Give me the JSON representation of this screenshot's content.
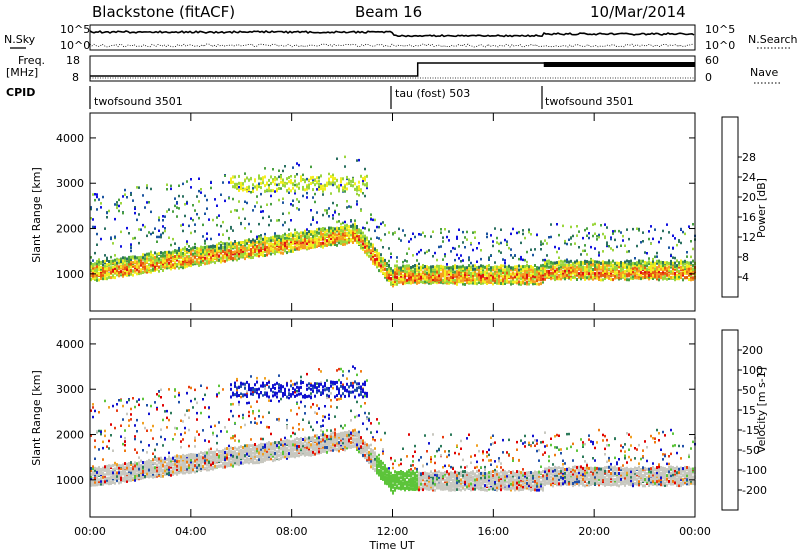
{
  "header": {
    "title": "Blackstone (fitACF)",
    "beam": "Beam 16",
    "date": "10/Mar/2014"
  },
  "side_labels": {
    "nsky": "N.Sky",
    "freq": "Freq.",
    "freq_unit": "[MHz]",
    "cpid": "CPID",
    "nsearch": "N.Search",
    "nave": "Nave"
  },
  "noise_axis": {
    "top": "10^5",
    "bottom": "10^0",
    "right_top": "10^5",
    "right_bottom": "10^0"
  },
  "freq_axis": {
    "left_top": "18",
    "left_bottom": "8",
    "right_top": "60",
    "right_bottom": "0"
  },
  "cpid_segments": [
    {
      "label": "twofsound 3501",
      "start_hour": 0
    },
    {
      "label": "tau (fost) 503",
      "start_hour": 12
    },
    {
      "label": "twofsound 3501",
      "start_hour": 18
    }
  ],
  "chart_data": [
    {
      "type": "heatmap",
      "title": "Power",
      "ylabel": "Slant Range [km]",
      "xlabel": "Time UT",
      "xlim_hours": [
        0,
        24
      ],
      "ylim_km": [
        180,
        4550
      ],
      "y_ticks": [
        1000,
        2000,
        3000,
        4000
      ],
      "x_tick_labels": [
        "00:00",
        "04:00",
        "08:00",
        "12:00",
        "16:00",
        "20:00",
        "00:00"
      ],
      "colorbar": {
        "label": "Power [dB]",
        "ticks": [
          "4",
          "8",
          "12",
          "16",
          "20",
          "24",
          "28"
        ],
        "colors": [
          "#1010e0",
          "#1b55a0",
          "#2a7060",
          "#48a040",
          "#9bd63c",
          "#f2ee1f",
          "#f5a020",
          "#e85a10",
          "#e01010"
        ]
      }
    },
    {
      "type": "heatmap",
      "title": "Velocity",
      "ylabel": "Slant Range [km]",
      "xlabel": "Time UT",
      "xlim_hours": [
        0,
        24
      ],
      "ylim_km": [
        180,
        4550
      ],
      "y_ticks": [
        1000,
        2000,
        3000,
        4000
      ],
      "x_tick_labels": [
        "00:00",
        "04:00",
        "08:00",
        "12:00",
        "16:00",
        "20:00",
        "00:00"
      ],
      "colorbar": {
        "label": "Velocity [m s-1]",
        "ticks": [
          "200",
          "100",
          "50",
          "15",
          "-15",
          "-50",
          "-100",
          "-200"
        ],
        "colors": [
          "#1010d0",
          "#1f4fa8",
          "#2c7a5a",
          "#5cc43a",
          "#c8c8c0",
          "#f0a020",
          "#f07a10",
          "#e83a10",
          "#e00000"
        ]
      }
    }
  ],
  "x_axis": {
    "title": "Time UT",
    "ticks": [
      "00:00",
      "04:00",
      "08:00",
      "12:00",
      "16:00",
      "20:00",
      "00:00"
    ]
  }
}
